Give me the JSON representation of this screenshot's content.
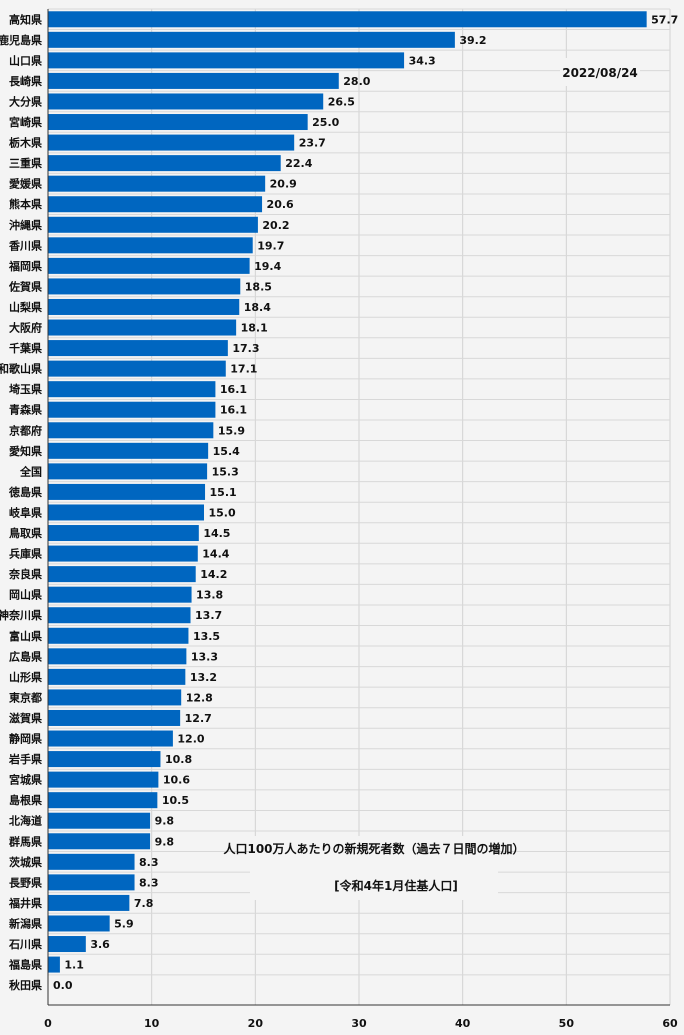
{
  "chart_data": {
    "type": "bar",
    "orientation": "horizontal",
    "categories": [
      "高知県",
      "鹿児島県",
      "山口県",
      "長崎県",
      "大分県",
      "宮崎県",
      "栃木県",
      "三重県",
      "愛媛県",
      "熊本県",
      "沖縄県",
      "香川県",
      "福岡県",
      "佐賀県",
      "山梨県",
      "大阪府",
      "千葉県",
      "和歌山県",
      "埼玉県",
      "青森県",
      "京都府",
      "愛知県",
      "全国",
      "徳島県",
      "岐阜県",
      "鳥取県",
      "兵庫県",
      "奈良県",
      "岡山県",
      "神奈川県",
      "富山県",
      "広島県",
      "山形県",
      "東京都",
      "滋賀県",
      "静岡県",
      "岩手県",
      "宮城県",
      "島根県",
      "北海道",
      "群馬県",
      "茨城県",
      "長野県",
      "福井県",
      "新潟県",
      "石川県",
      "福島県",
      "秋田県"
    ],
    "values": [
      57.7,
      39.2,
      34.3,
      28.0,
      26.5,
      25.0,
      23.7,
      22.4,
      20.9,
      20.6,
      20.2,
      19.7,
      19.4,
      18.5,
      18.4,
      18.1,
      17.3,
      17.1,
      16.1,
      16.1,
      15.9,
      15.4,
      15.3,
      15.1,
      15.0,
      14.5,
      14.4,
      14.2,
      13.8,
      13.7,
      13.5,
      13.3,
      13.2,
      12.8,
      12.7,
      12.0,
      10.8,
      10.6,
      10.5,
      9.8,
      9.8,
      8.3,
      8.3,
      7.8,
      5.9,
      3.6,
      1.1,
      0.0
    ],
    "value_labels": [
      "57.7",
      "39.2",
      "34.3",
      "28.0",
      "26.5",
      "25.0",
      "23.7",
      "22.4",
      "20.9",
      "20.6",
      "20.2",
      "19.7",
      "19.4",
      "18.5",
      "18.4",
      "18.1",
      "17.3",
      "17.1",
      "16.1",
      "16.1",
      "15.9",
      "15.4",
      "15.3",
      "15.1",
      "15.0",
      "14.5",
      "14.4",
      "14.2",
      "13.8",
      "13.7",
      "13.5",
      "13.3",
      "13.2",
      "12.8",
      "12.7",
      "12.0",
      "10.8",
      "10.6",
      "10.5",
      "9.8",
      "9.8",
      "8.3",
      "8.3",
      "7.8",
      "5.9",
      "3.6",
      "1.1",
      "0.0"
    ],
    "xlim": [
      0,
      60
    ],
    "xticks": [
      "0",
      "10",
      "20",
      "30",
      "40",
      "50",
      "60"
    ],
    "grid": true,
    "bar_color": "#0066c0",
    "annotations": {
      "date": "2022/08/24",
      "title": "人口100万人あたりの新規死者数（過去７日間の増加）",
      "subtitle": "[令和4年1月住基人口]"
    }
  }
}
